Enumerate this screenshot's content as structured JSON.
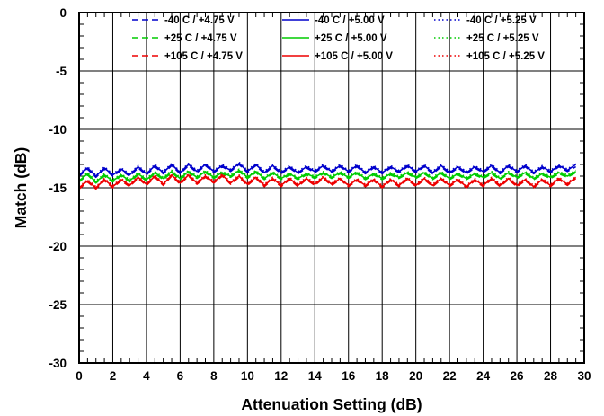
{
  "chart_data": {
    "type": "line",
    "xlabel": "Attenuation Setting (dB)",
    "ylabel": "Match (dB)",
    "xlim": [
      0,
      30
    ],
    "ylim": [
      -30,
      0
    ],
    "x_ticks": [
      "0",
      "2",
      "4",
      "6",
      "8",
      "10",
      "12",
      "14",
      "16",
      "18",
      "20",
      "22",
      "24",
      "26",
      "28",
      "30"
    ],
    "y_ticks": [
      "0",
      "-5",
      "-10",
      "-15",
      "-20",
      "-25",
      "-30"
    ],
    "grid": true,
    "legend_position": "top",
    "x_step": 0.5,
    "x_max": 29.5,
    "series": [
      {
        "name": "-40 C  / +4.75 V",
        "color": "#0000cc",
        "style": "dashed",
        "values": [
          -14.0,
          -13.4,
          -14.1,
          -13.4,
          -14.0,
          -13.5,
          -14.0,
          -13.3,
          -13.9,
          -13.2,
          -13.8,
          -13.1,
          -13.8,
          -13.1,
          -13.7,
          -13.1,
          -13.7,
          -13.2,
          -13.6,
          -13.0,
          -13.7,
          -13.1,
          -13.8,
          -13.2,
          -13.8,
          -13.3,
          -13.8,
          -13.3,
          -13.7,
          -13.2,
          -13.7,
          -13.2,
          -13.7,
          -13.2,
          -13.8,
          -13.3,
          -13.8,
          -13.3,
          -13.7,
          -13.2,
          -13.7,
          -13.2,
          -13.8,
          -13.2,
          -13.8,
          -13.3,
          -13.8,
          -13.3,
          -13.7,
          -13.2,
          -13.8,
          -13.2,
          -13.7,
          -13.2,
          -13.8,
          -13.3,
          -13.7,
          -13.2,
          -13.6,
          -13.2
        ]
      },
      {
        "name": "-40 C  / +5.00 V",
        "color": "#0000cc",
        "style": "solid",
        "values": [
          -13.9,
          -13.3,
          -14.0,
          -13.3,
          -13.9,
          -13.4,
          -13.9,
          -13.2,
          -13.8,
          -13.1,
          -13.7,
          -13.0,
          -13.7,
          -13.0,
          -13.6,
          -13.0,
          -13.6,
          -13.1,
          -13.5,
          -12.9,
          -13.6,
          -13.0,
          -13.7,
          -13.1,
          -13.7,
          -13.2,
          -13.7,
          -13.2,
          -13.6,
          -13.1,
          -13.6,
          -13.1,
          -13.6,
          -13.1,
          -13.7,
          -13.2,
          -13.7,
          -13.2,
          -13.6,
          -13.1,
          -13.6,
          -13.1,
          -13.7,
          -13.1,
          -13.7,
          -13.2,
          -13.7,
          -13.2,
          -13.6,
          -13.1,
          -13.7,
          -13.1,
          -13.6,
          -13.1,
          -13.7,
          -13.2,
          -13.6,
          -13.1,
          -13.5,
          -13.0
        ]
      },
      {
        "name": "-40 C  / +5.25 V",
        "color": "#0000cc",
        "style": "dotted",
        "values": [
          -13.8,
          -13.2,
          -13.9,
          -13.2,
          -13.8,
          -13.3,
          -13.8,
          -13.1,
          -13.7,
          -13.0,
          -13.6,
          -12.9,
          -13.6,
          -12.9,
          -13.5,
          -12.9,
          -13.5,
          -13.0,
          -13.4,
          -12.8,
          -13.5,
          -12.9,
          -13.6,
          -13.0,
          -13.6,
          -13.1,
          -13.6,
          -13.1,
          -13.5,
          -13.0,
          -13.5,
          -13.0,
          -13.5,
          -13.0,
          -13.6,
          -13.1,
          -13.6,
          -13.1,
          -13.5,
          -13.0,
          -13.5,
          -13.0,
          -13.6,
          -13.0,
          -13.6,
          -13.1,
          -13.6,
          -13.1,
          -13.5,
          -13.0,
          -13.6,
          -13.0,
          -13.5,
          -13.0,
          -13.6,
          -13.1,
          -13.5,
          -13.0,
          -13.4,
          -12.9
        ]
      },
      {
        "name": "+25 C  / +4.75 V",
        "color": "#00cc00",
        "style": "dashed",
        "values": [
          -14.5,
          -13.9,
          -14.6,
          -14.0,
          -14.5,
          -14.0,
          -14.5,
          -13.9,
          -14.4,
          -13.8,
          -14.3,
          -13.7,
          -14.3,
          -13.7,
          -14.2,
          -13.7,
          -14.2,
          -13.8,
          -14.1,
          -13.6,
          -14.2,
          -13.7,
          -14.3,
          -13.8,
          -14.3,
          -13.9,
          -14.3,
          -13.9,
          -14.2,
          -13.8,
          -14.2,
          -13.8,
          -14.2,
          -13.8,
          -14.3,
          -13.9,
          -14.3,
          -13.9,
          -14.2,
          -13.8,
          -14.2,
          -13.8,
          -14.3,
          -13.8,
          -14.3,
          -13.9,
          -14.3,
          -13.9,
          -14.2,
          -13.8,
          -14.3,
          -13.8,
          -14.2,
          -13.8,
          -14.3,
          -13.9,
          -14.2,
          -13.8,
          -14.1,
          -13.7
        ]
      },
      {
        "name": "+25 C  / +5.00 V",
        "color": "#00cc00",
        "style": "solid",
        "values": [
          -14.4,
          -13.8,
          -14.5,
          -13.9,
          -14.4,
          -13.9,
          -14.4,
          -13.8,
          -14.3,
          -13.7,
          -14.2,
          -13.6,
          -14.2,
          -13.6,
          -14.1,
          -13.6,
          -14.1,
          -13.7,
          -14.0,
          -13.5,
          -14.1,
          -13.6,
          -14.2,
          -13.7,
          -14.2,
          -13.8,
          -14.2,
          -13.8,
          -14.1,
          -13.7,
          -14.1,
          -13.7,
          -14.1,
          -13.7,
          -14.2,
          -13.8,
          -14.2,
          -13.8,
          -14.1,
          -13.7,
          -14.1,
          -13.7,
          -14.2,
          -13.7,
          -14.2,
          -13.8,
          -14.2,
          -13.8,
          -14.1,
          -13.7,
          -14.2,
          -13.7,
          -14.1,
          -13.7,
          -14.2,
          -13.8,
          -14.1,
          -13.7,
          -14.0,
          -13.6
        ]
      },
      {
        "name": "+25 C  / +5.25 V",
        "color": "#00cc00",
        "style": "dotted",
        "values": [
          -14.3,
          -13.7,
          -14.4,
          -13.8,
          -14.3,
          -13.8,
          -14.3,
          -13.7,
          -14.2,
          -13.6,
          -14.1,
          -13.5,
          -14.1,
          -13.5,
          -14.0,
          -13.5,
          -14.0,
          -13.6,
          -13.9,
          -13.4,
          -14.0,
          -13.5,
          -14.1,
          -13.6,
          -14.1,
          -13.7,
          -14.1,
          -13.7,
          -14.0,
          -13.6,
          -14.0,
          -13.6,
          -14.0,
          -13.6,
          -14.1,
          -13.7,
          -14.1,
          -13.7,
          -14.0,
          -13.6,
          -14.0,
          -13.6,
          -14.1,
          -13.6,
          -14.1,
          -13.7,
          -14.1,
          -13.7,
          -14.0,
          -13.6,
          -14.1,
          -13.6,
          -14.0,
          -13.6,
          -14.1,
          -13.7,
          -14.0,
          -13.6,
          -13.9,
          -13.5
        ]
      },
      {
        "name": "+105 C / +4.75 V",
        "color": "#ee0000",
        "style": "dashed",
        "values": [
          -15.1,
          -14.5,
          -15.1,
          -14.4,
          -15.0,
          -14.4,
          -14.9,
          -14.2,
          -14.8,
          -14.1,
          -14.8,
          -14.0,
          -14.7,
          -14.0,
          -14.7,
          -14.1,
          -14.6,
          -14.0,
          -14.7,
          -14.1,
          -14.8,
          -14.2,
          -14.9,
          -14.3,
          -14.9,
          -14.3,
          -14.9,
          -14.3,
          -14.8,
          -14.2,
          -14.8,
          -14.3,
          -14.9,
          -14.4,
          -14.9,
          -14.4,
          -15.0,
          -14.4,
          -14.9,
          -14.3,
          -14.9,
          -14.3,
          -14.9,
          -14.3,
          -14.9,
          -14.4,
          -15.0,
          -14.4,
          -14.9,
          -14.3,
          -14.9,
          -14.3,
          -14.9,
          -14.4,
          -15.0,
          -14.4,
          -14.9,
          -14.3,
          -14.8,
          -14.2
        ]
      },
      {
        "name": "+105 C / +5.00 V",
        "color": "#ee0000",
        "style": "solid",
        "values": [
          -15.0,
          -14.4,
          -15.0,
          -14.3,
          -14.9,
          -14.3,
          -14.8,
          -14.1,
          -14.7,
          -14.0,
          -14.7,
          -13.9,
          -14.6,
          -13.9,
          -14.6,
          -14.0,
          -14.5,
          -13.9,
          -14.6,
          -14.0,
          -14.7,
          -14.1,
          -14.8,
          -14.2,
          -14.8,
          -14.2,
          -14.8,
          -14.2,
          -14.7,
          -14.1,
          -14.7,
          -14.2,
          -14.8,
          -14.3,
          -14.8,
          -14.3,
          -14.9,
          -14.3,
          -14.8,
          -14.2,
          -14.8,
          -14.2,
          -14.8,
          -14.2,
          -14.8,
          -14.3,
          -14.9,
          -14.3,
          -14.8,
          -14.2,
          -14.8,
          -14.2,
          -14.8,
          -14.3,
          -14.9,
          -14.3,
          -14.8,
          -14.2,
          -14.7,
          -14.1
        ]
      },
      {
        "name": "+105 C / +5.25 V",
        "color": "#ee0000",
        "style": "dotted",
        "values": [
          -14.9,
          -14.3,
          -14.9,
          -14.2,
          -14.8,
          -14.2,
          -14.7,
          -14.0,
          -14.6,
          -13.9,
          -14.6,
          -13.8,
          -14.5,
          -13.8,
          -14.5,
          -13.9,
          -14.4,
          -13.8,
          -14.5,
          -13.9,
          -14.6,
          -14.0,
          -14.7,
          -14.1,
          -14.7,
          -14.1,
          -14.7,
          -14.1,
          -14.6,
          -14.0,
          -14.6,
          -14.1,
          -14.7,
          -14.2,
          -14.7,
          -14.2,
          -14.8,
          -14.2,
          -14.7,
          -14.1,
          -14.7,
          -14.1,
          -14.7,
          -14.1,
          -14.7,
          -14.2,
          -14.8,
          -14.2,
          -14.7,
          -14.1,
          -14.7,
          -14.1,
          -14.7,
          -14.2,
          -14.8,
          -14.2,
          -14.7,
          -14.1,
          -14.6,
          -14.0
        ]
      }
    ]
  }
}
